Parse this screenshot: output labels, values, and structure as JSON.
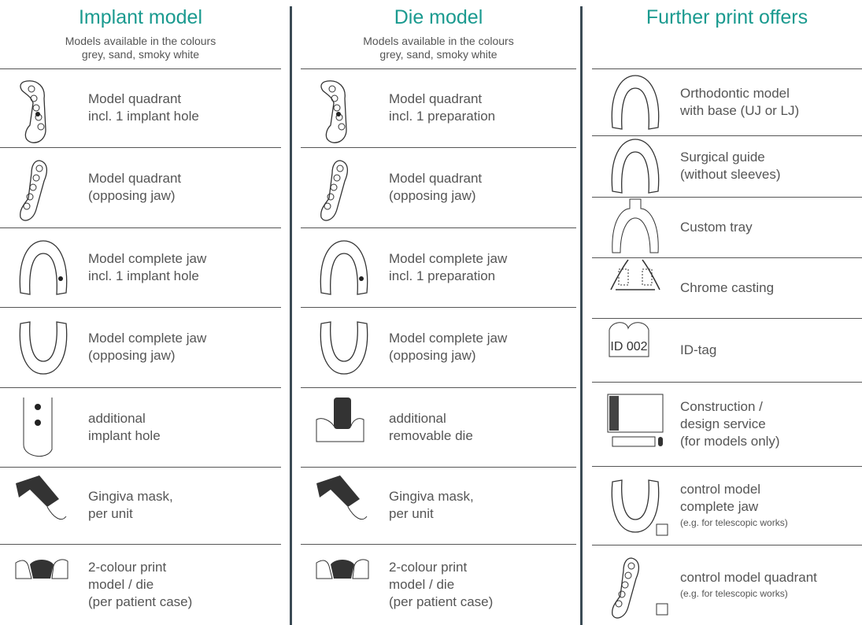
{
  "columns": [
    {
      "title": "Implant model",
      "subtitle": [
        "Models available in the colours",
        "grey, sand, smoky white"
      ],
      "items": [
        {
          "lines": [
            "Model quadrant",
            "incl. 1 implant hole"
          ]
        },
        {
          "lines": [
            "Model quadrant",
            "(opposing jaw)"
          ]
        },
        {
          "lines": [
            "Model complete jaw",
            "incl. 1 implant hole"
          ]
        },
        {
          "lines": [
            "Model complete jaw",
            "(opposing jaw)"
          ]
        },
        {
          "lines": [
            "additional",
            "implant hole"
          ]
        },
        {
          "lines": [
            "Gingiva mask,",
            "per unit"
          ]
        },
        {
          "lines": [
            "2-colour print",
            "model / die",
            "(per patient case)"
          ]
        }
      ]
    },
    {
      "title": "Die model",
      "subtitle": [
        "Models available in the colours",
        "grey, sand, smoky white"
      ],
      "items": [
        {
          "lines": [
            "Model quadrant",
            "incl. 1 preparation"
          ]
        },
        {
          "lines": [
            "Model quadrant",
            "(opposing jaw)"
          ]
        },
        {
          "lines": [
            "Model complete jaw",
            "incl. 1 preparation"
          ]
        },
        {
          "lines": [
            "Model complete jaw",
            "(opposing jaw)"
          ]
        },
        {
          "lines": [
            "additional",
            "removable die"
          ]
        },
        {
          "lines": [
            "Gingiva mask,",
            "per unit"
          ]
        },
        {
          "lines": [
            "2-colour print",
            "model / die",
            "(per patient case)"
          ]
        }
      ]
    },
    {
      "title": "Further print offers",
      "items": [
        {
          "lines": [
            "Orthodontic model",
            "with base (UJ or LJ)"
          ]
        },
        {
          "lines": [
            "Surgical guide",
            "(without sleeves)"
          ]
        },
        {
          "lines": [
            "Custom tray"
          ]
        },
        {
          "lines": [
            "Chrome casting"
          ]
        },
        {
          "lines": [
            "ID-tag"
          ],
          "icon_text": "ID 002"
        },
        {
          "lines": [
            "Construction /",
            "design service",
            "(for models only)"
          ]
        },
        {
          "lines": [
            "control model",
            "complete jaw"
          ],
          "note": "(e.g. for telescopic works)"
        },
        {
          "lines": [
            "control model quadrant"
          ],
          "note": "(e.g. for telescopic works)"
        }
      ]
    }
  ]
}
